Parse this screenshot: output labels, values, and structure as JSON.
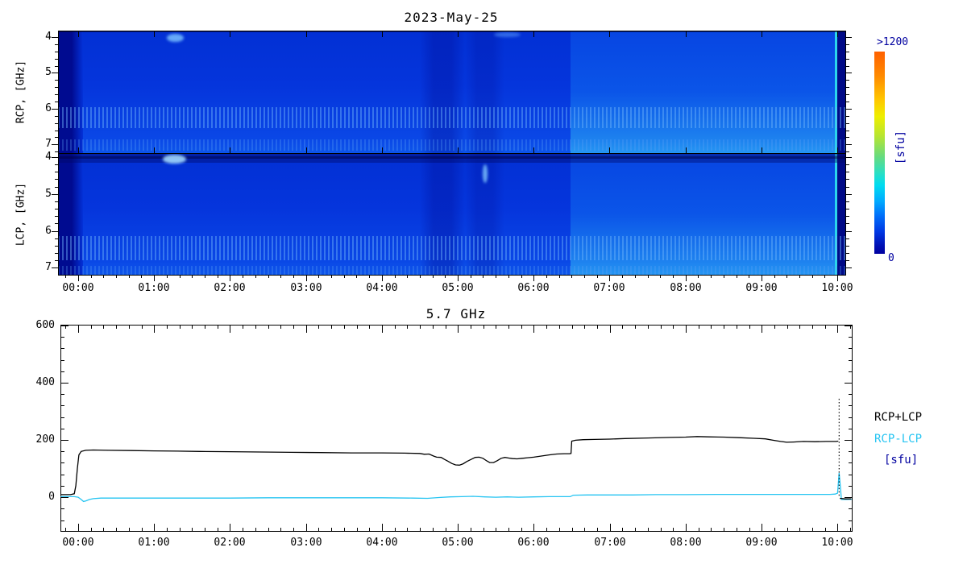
{
  "figure": {
    "background": "#FFFFFF"
  },
  "colors": {
    "black": "#000000",
    "cyan": "#25C4F2",
    "navy": "#0000A0",
    "axis": "#000000"
  },
  "chart_data": [
    {
      "type": "heatmap",
      "title": "2023-May-25",
      "xlabel": "",
      "time_min": -0.265,
      "time_max": 10.106,
      "xticks": {
        "hours": [
          0,
          1,
          2,
          3,
          4,
          5,
          6,
          7,
          8,
          9,
          10
        ],
        "labels": [
          "00:00",
          "01:00",
          "02:00",
          "03:00",
          "04:00",
          "05:00",
          "06:00",
          "07:00",
          "08:00",
          "09:00",
          "10:00"
        ],
        "minor_step_hr": 0.1667
      },
      "panels": [
        {
          "id": "rcp",
          "ylabel": "RCP, [GHz]",
          "freq_min": 3.82,
          "freq_max": 7.24,
          "yticks": [
            4,
            5,
            6,
            7
          ],
          "minor_step_ghz": 0.2
        },
        {
          "id": "lcp",
          "ylabel": "LCP, [GHz]",
          "freq_min": 3.89,
          "freq_max": 7.19,
          "yticks": [
            4,
            5,
            6,
            7
          ],
          "minor_step_ghz": 0.2
        }
      ],
      "colorbar": {
        "top_label": ">1200",
        "bottom_label": "0",
        "unit_label": "[sfu]",
        "stops": [
          {
            "c": "#FF6000",
            "p": 0
          },
          {
            "c": "#FF8A00",
            "p": 12
          },
          {
            "c": "#FFC800",
            "p": 24
          },
          {
            "c": "#EEEE00",
            "p": 32
          },
          {
            "c": "#B5E533",
            "p": 42
          },
          {
            "c": "#66DB7F",
            "p": 52
          },
          {
            "c": "#2BDFC3",
            "p": 60
          },
          {
            "c": "#00DCF0",
            "p": 66
          },
          {
            "c": "#00AAFF",
            "p": 74
          },
          {
            "c": "#0070FA",
            "p": 81
          },
          {
            "c": "#0038E4",
            "p": 89
          },
          {
            "c": "#0010B4",
            "p": 96
          },
          {
            "c": "#0000A0",
            "p": 100
          }
        ]
      },
      "heatmap": {
        "regions": [
          {
            "t0": -0.265,
            "t1": 0.06,
            "type": "hgrad",
            "c0": "#000B90",
            "c1": "#0331D8"
          },
          {
            "t0": 0.06,
            "t1": 6.49,
            "type": "vgrad",
            "stops": [
              "#0230D4 0%",
              "#0535DC 45%",
              "#0A47E6 88%",
              "#0D55EA 100%"
            ]
          },
          {
            "t0": 6.49,
            "t1": 9.97,
            "type": "vgrad",
            "stops": [
              "#0745E2 0%",
              "#0B55E8 50%",
              "#1E83EF 90%",
              "#2596F3 100%"
            ]
          },
          {
            "t0": 9.97,
            "t1": 10.0,
            "type": "solid",
            "color": "#2BD5EC"
          },
          {
            "t0": 10.0,
            "t1": 10.106,
            "type": "solid",
            "color": "#000A87"
          }
        ],
        "vertical_bands": [
          {
            "t0": 4.5,
            "t1": 5.1,
            "color": "rgba(0,12,150,0.35)"
          },
          {
            "t0": 5.1,
            "t1": 5.62,
            "color": "rgba(0,12,150,0.25)"
          }
        ],
        "freq_bands": {
          "rcp": [
            {
              "f0": 3.82,
              "f1": 3.87,
              "color": "rgba(0,0,40,0.5)",
              "speckle": false
            },
            {
              "f0": 5.95,
              "f1": 6.55,
              "color": "rgba(110,180,250,0.45)",
              "speckle": true
            },
            {
              "f0": 6.85,
              "f1": 7.18,
              "color": "rgba(90,160,245,0.30)",
              "speckle": true
            }
          ],
          "lcp": [
            {
              "f0": 3.89,
              "f1": 4.15,
              "color": "rgba(0,8,100,0.40)",
              "speckle": false
            },
            {
              "f0": 3.98,
              "f1": 4.04,
              "color": "rgba(0,0,60,0.45)",
              "speckle": false
            },
            {
              "f0": 6.15,
              "f1": 6.8,
              "color": "rgba(110,180,250,0.45)",
              "speckle": true
            },
            {
              "f0": 6.95,
              "f1": 7.19,
              "color": "rgba(90,160,245,0.30)",
              "speckle": true
            }
          ]
        },
        "spots": [
          {
            "panel": "rcp",
            "t": 1.28,
            "f": 4.02,
            "dt": 0.22,
            "df": 0.22,
            "color": "rgba(120,190,255,0.85)"
          },
          {
            "panel": "lcp",
            "t": 1.27,
            "f": 4.05,
            "dt": 0.3,
            "df": 0.25,
            "color": "rgba(160,215,255,0.9)"
          },
          {
            "panel": "rcp",
            "t": 5.65,
            "f": 3.93,
            "dt": 0.35,
            "df": 0.14,
            "color": "rgba(70,130,240,0.7)"
          },
          {
            "panel": "lcp",
            "t": 5.36,
            "f": 4.45,
            "dt": 0.06,
            "df": 0.5,
            "color": "rgba(130,200,255,0.8)"
          }
        ]
      }
    },
    {
      "type": "line",
      "title": "5.7 GHz",
      "x_min": -0.233,
      "x_max": 10.187,
      "y_min": -118,
      "y_max": 603,
      "yticks": {
        "values": [
          0,
          200,
          400,
          600
        ],
        "labels": [
          "0",
          "200",
          "400",
          "600"
        ],
        "minor_step": 40
      },
      "xticks": {
        "hours": [
          0,
          1,
          2,
          3,
          4,
          5,
          6,
          7,
          8,
          9,
          10
        ],
        "labels": [
          "00:00",
          "01:00",
          "02:00",
          "03:00",
          "04:00",
          "05:00",
          "06:00",
          "07:00",
          "08:00",
          "09:00",
          "10:00"
        ],
        "minor_step_hr": 0.1667
      },
      "legend": [
        {
          "label": "RCP+LCP",
          "color": "#000000"
        },
        {
          "label": "RCP-LCP",
          "color": "#25C4F2"
        },
        {
          "label": "[sfu]",
          "color": "#0000A0"
        }
      ],
      "series": [
        {
          "name": "RCP-LCP",
          "color": "#25C4F2",
          "style": "solid",
          "width": 1.3,
          "points": [
            [
              -0.23,
              2
            ],
            [
              -0.05,
              2
            ],
            [
              0.0,
              0
            ],
            [
              0.04,
              -8
            ],
            [
              0.07,
              -15
            ],
            [
              0.1,
              -13
            ],
            [
              0.15,
              -8
            ],
            [
              0.2,
              -5
            ],
            [
              0.3,
              -3
            ],
            [
              0.6,
              -3
            ],
            [
              1.0,
              -3
            ],
            [
              1.5,
              -3
            ],
            [
              2.0,
              -3
            ],
            [
              2.5,
              -2
            ],
            [
              3.0,
              -2
            ],
            [
              3.5,
              -2
            ],
            [
              4.0,
              -2
            ],
            [
              4.4,
              -3
            ],
            [
              4.6,
              -4
            ],
            [
              4.75,
              -1
            ],
            [
              4.9,
              1
            ],
            [
              5.05,
              2
            ],
            [
              5.2,
              3
            ],
            [
              5.35,
              1
            ],
            [
              5.5,
              0
            ],
            [
              5.65,
              1
            ],
            [
              5.8,
              0
            ],
            [
              6.0,
              1
            ],
            [
              6.2,
              2
            ],
            [
              6.35,
              2
            ],
            [
              6.48,
              2
            ],
            [
              6.52,
              7
            ],
            [
              6.7,
              8
            ],
            [
              7.0,
              8
            ],
            [
              7.3,
              8
            ],
            [
              7.6,
              9
            ],
            [
              8.0,
              9
            ],
            [
              8.4,
              10
            ],
            [
              8.8,
              10
            ],
            [
              9.2,
              10
            ],
            [
              9.6,
              10
            ],
            [
              9.9,
              10
            ],
            [
              9.97,
              11
            ],
            [
              10.0,
              14
            ],
            [
              10.02,
              85
            ],
            [
              10.04,
              30
            ],
            [
              10.05,
              -8
            ],
            [
              10.12,
              -8
            ],
            [
              10.2,
              -7
            ]
          ]
        },
        {
          "name": "RCP+LCP spike",
          "color": "#000000",
          "style": "dotted",
          "width": 1.1,
          "points": [
            [
              10.02,
              5
            ],
            [
              10.02,
              348
            ]
          ]
        },
        {
          "name": "RCP+LCP",
          "color": "#000000",
          "style": "solid",
          "width": 1.3,
          "points": [
            [
              -0.23,
              9
            ],
            [
              -0.1,
              9
            ],
            [
              -0.05,
              12
            ],
            [
              -0.03,
              40
            ],
            [
              -0.01,
              100
            ],
            [
              0.01,
              148
            ],
            [
              0.04,
              160
            ],
            [
              0.1,
              164
            ],
            [
              0.2,
              165
            ],
            [
              0.4,
              164
            ],
            [
              0.7,
              163
            ],
            [
              1.0,
              162
            ],
            [
              1.3,
              161
            ],
            [
              1.6,
              160
            ],
            [
              2.0,
              159
            ],
            [
              2.4,
              158
            ],
            [
              2.8,
              157
            ],
            [
              3.2,
              156
            ],
            [
              3.6,
              155
            ],
            [
              4.0,
              155
            ],
            [
              4.3,
              154
            ],
            [
              4.5,
              153
            ],
            [
              4.56,
              150
            ],
            [
              4.62,
              151
            ],
            [
              4.68,
              144
            ],
            [
              4.72,
              140
            ],
            [
              4.78,
              139
            ],
            [
              4.82,
              133
            ],
            [
              4.87,
              126
            ],
            [
              4.92,
              118
            ],
            [
              4.97,
              113
            ],
            [
              5.02,
              112
            ],
            [
              5.07,
              117
            ],
            [
              5.12,
              125
            ],
            [
              5.18,
              133
            ],
            [
              5.23,
              139
            ],
            [
              5.28,
              140
            ],
            [
              5.33,
              136
            ],
            [
              5.38,
              127
            ],
            [
              5.42,
              121
            ],
            [
              5.47,
              121
            ],
            [
              5.52,
              128
            ],
            [
              5.57,
              136
            ],
            [
              5.62,
              139
            ],
            [
              5.67,
              137
            ],
            [
              5.72,
              135
            ],
            [
              5.78,
              134
            ],
            [
              5.85,
              136
            ],
            [
              5.92,
              138
            ],
            [
              6.0,
              140
            ],
            [
              6.1,
              144
            ],
            [
              6.2,
              148
            ],
            [
              6.3,
              151
            ],
            [
              6.4,
              152
            ],
            [
              6.47,
              152
            ],
            [
              6.49,
              153
            ],
            [
              6.5,
              196
            ],
            [
              6.55,
              199
            ],
            [
              6.65,
              201
            ],
            [
              6.8,
              202
            ],
            [
              7.0,
              203
            ],
            [
              7.2,
              205
            ],
            [
              7.5,
              207
            ],
            [
              7.8,
              209
            ],
            [
              8.0,
              210
            ],
            [
              8.15,
              212
            ],
            [
              8.3,
              211
            ],
            [
              8.5,
              210
            ],
            [
              8.7,
              208
            ],
            [
              8.9,
              206
            ],
            [
              9.05,
              204
            ],
            [
              9.15,
              199
            ],
            [
              9.25,
              195
            ],
            [
              9.33,
              192
            ],
            [
              9.42,
              193
            ],
            [
              9.55,
              195
            ],
            [
              9.7,
              194
            ],
            [
              9.85,
              195
            ],
            [
              9.98,
              195
            ],
            [
              10.01,
              196
            ]
          ]
        },
        {
          "name": "RCP+LCP tail",
          "color": "#000000",
          "style": "solid",
          "width": 1.3,
          "points": [
            [
              10.03,
              -4
            ],
            [
              10.1,
              -6
            ],
            [
              10.18,
              -6
            ]
          ]
        }
      ]
    }
  ]
}
